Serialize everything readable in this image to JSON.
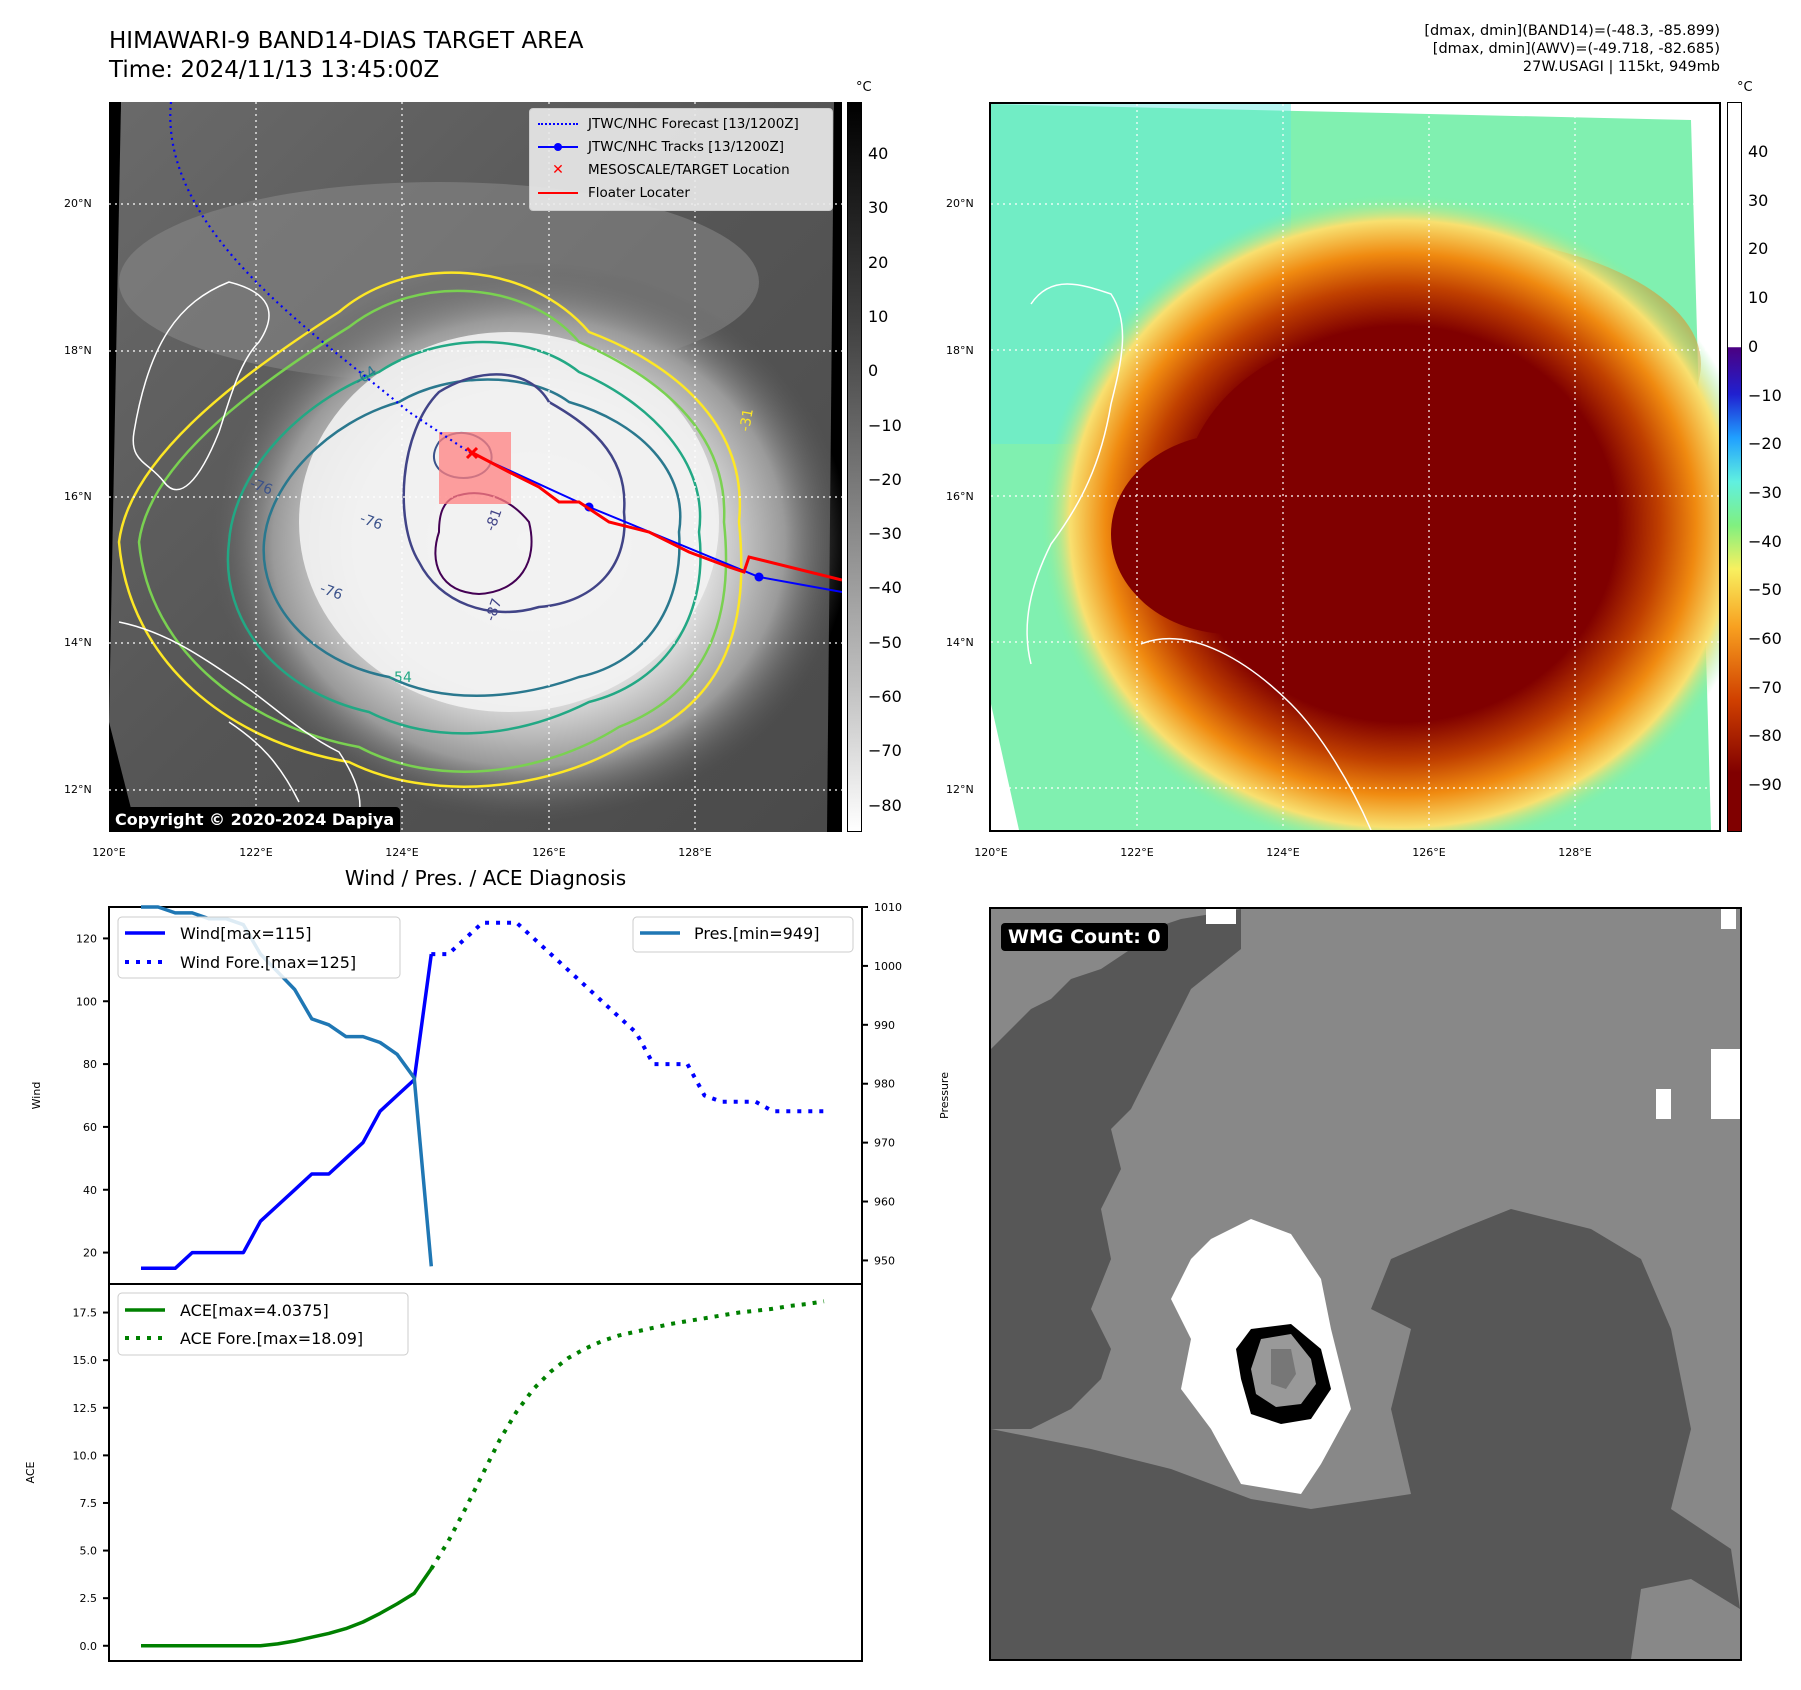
{
  "left_panel": {
    "title_line1": "HIMAWARI-9 BAND14-DIAS TARGET AREA",
    "title_line2": "Time: 2024/11/13 13:45:00Z",
    "copyright": "Copyright © 2020-2024 Dapiya",
    "lat_ticks": [
      "20°N",
      "18°N",
      "16°N",
      "14°N",
      "12°N"
    ],
    "lon_ticks": [
      "120°E",
      "122°E",
      "124°E",
      "126°E",
      "128°E"
    ],
    "contour_labels": [
      "-31",
      "-54",
      "-64",
      "-76",
      "-76",
      "-76",
      "-81",
      "-87"
    ],
    "legend": [
      {
        "label": "JTWC/NHC Forecast [13/1200Z]",
        "icon": "dotted-line-icon",
        "color": "#0000ff"
      },
      {
        "label": "JTWC/NHC Tracks [13/1200Z]",
        "icon": "line-marker-icon",
        "color": "#0000ff"
      },
      {
        "label": "MESOSCALE/TARGET Location",
        "icon": "x-marker-icon",
        "color": "#ff0000"
      },
      {
        "label": "Floater Locater",
        "icon": "solid-line-icon",
        "color": "#ff0000"
      }
    ],
    "colorbar": {
      "unit": "°C",
      "ticks": [
        "40",
        "30",
        "20",
        "10",
        "0",
        "−10",
        "−20",
        "−30",
        "−40",
        "−50",
        "−60",
        "−70",
        "−80"
      ]
    }
  },
  "right_panel": {
    "info_line1": "[dmax, dmin](BAND14)=(-48.3, -85.899)",
    "info_line2": "[dmax, dmin](AWV)=(-49.718, -82.685)",
    "info_line3": "27W.USAGI | 115kt, 949mb",
    "lat_ticks": [
      "20°N",
      "18°N",
      "16°N",
      "14°N",
      "12°N"
    ],
    "lon_ticks": [
      "120°E",
      "122°E",
      "124°E",
      "126°E",
      "128°E"
    ],
    "colorbar": {
      "unit": "°C",
      "ticks": [
        "40",
        "30",
        "20",
        "10",
        "0",
        "−10",
        "−20",
        "−30",
        "−40",
        "−50",
        "−60",
        "−70",
        "−80",
        "−90"
      ]
    }
  },
  "wmg_panel": {
    "label": "WMG Count: 0"
  },
  "colors": {
    "wind": "#0000ff",
    "pressure": "#1f77b4",
    "ace": "#008000",
    "floater": "#ff0000"
  },
  "chart_data": [
    {
      "type": "line",
      "title": "Wind / Pres. / ACE Diagnosis",
      "ylabel": "Wind",
      "y2label": "Pressure",
      "ylim": [
        10,
        130
      ],
      "y2lim": [
        946,
        1010
      ],
      "yticks": [
        "20",
        "40",
        "60",
        "80",
        "100",
        "120"
      ],
      "y2ticks": [
        "950",
        "960",
        "970",
        "980",
        "990",
        "1000",
        "1010"
      ],
      "series": [
        {
          "name": "Wind[max=115]",
          "axis": "left",
          "style": "solid",
          "x": [
            0,
            1,
            2,
            3,
            4,
            5,
            6,
            7,
            8,
            9,
            10,
            11,
            12,
            13,
            14,
            15,
            16,
            17
          ],
          "values": [
            15,
            15,
            15,
            20,
            20,
            20,
            20,
            30,
            35,
            40,
            45,
            45,
            50,
            55,
            65,
            70,
            75,
            115
          ]
        },
        {
          "name": "Wind Fore.[max=125]",
          "axis": "left",
          "style": "dotted",
          "x": [
            17,
            18,
            19,
            20,
            21,
            22,
            23,
            24,
            25,
            26,
            27,
            28,
            29,
            30,
            31,
            32,
            33,
            34,
            35,
            36,
            37,
            38,
            39,
            40
          ],
          "values": [
            115,
            115,
            120,
            125,
            125,
            125,
            120,
            115,
            110,
            105,
            100,
            95,
            90,
            80,
            80,
            80,
            70,
            68,
            68,
            68,
            65,
            65,
            65,
            65
          ]
        },
        {
          "name": "Pres.[min=949]",
          "axis": "right",
          "style": "solid",
          "x": [
            0,
            1,
            2,
            3,
            4,
            5,
            6,
            7,
            8,
            9,
            10,
            11,
            12,
            13,
            14,
            15,
            16,
            17
          ],
          "values": [
            1010,
            1010,
            1009,
            1009,
            1008,
            1008,
            1007,
            1002,
            999,
            996,
            991,
            990,
            988,
            988,
            987,
            985,
            981,
            949
          ]
        }
      ]
    },
    {
      "type": "line",
      "ylabel": "ACE",
      "ylim": [
        -0.8,
        19
      ],
      "yticks": [
        "0.0",
        "2.5",
        "5.0",
        "7.5",
        "10.0",
        "12.5",
        "15.0",
        "17.5"
      ],
      "series": [
        {
          "name": "ACE[max=4.0375]",
          "style": "solid",
          "x": [
            0,
            1,
            2,
            3,
            4,
            5,
            6,
            7,
            8,
            9,
            10,
            11,
            12,
            13,
            14,
            15,
            16,
            17
          ],
          "values": [
            0,
            0,
            0,
            0,
            0,
            0,
            0,
            0,
            0.1,
            0.25,
            0.45,
            0.65,
            0.9,
            1.25,
            1.7,
            2.2,
            2.75,
            4.04
          ]
        },
        {
          "name": "ACE Fore.[max=18.09]",
          "style": "dotted",
          "x": [
            17,
            18,
            19,
            20,
            21,
            22,
            23,
            24,
            25,
            26,
            27,
            28,
            29,
            30,
            31,
            32,
            33,
            34,
            35,
            36,
            37,
            38,
            39,
            40
          ],
          "values": [
            4.04,
            5.5,
            7.2,
            9.0,
            10.8,
            12.3,
            13.5,
            14.4,
            15.1,
            15.6,
            16.0,
            16.3,
            16.5,
            16.7,
            16.9,
            17.05,
            17.2,
            17.35,
            17.5,
            17.6,
            17.7,
            17.85,
            17.95,
            18.09
          ]
        }
      ]
    }
  ]
}
